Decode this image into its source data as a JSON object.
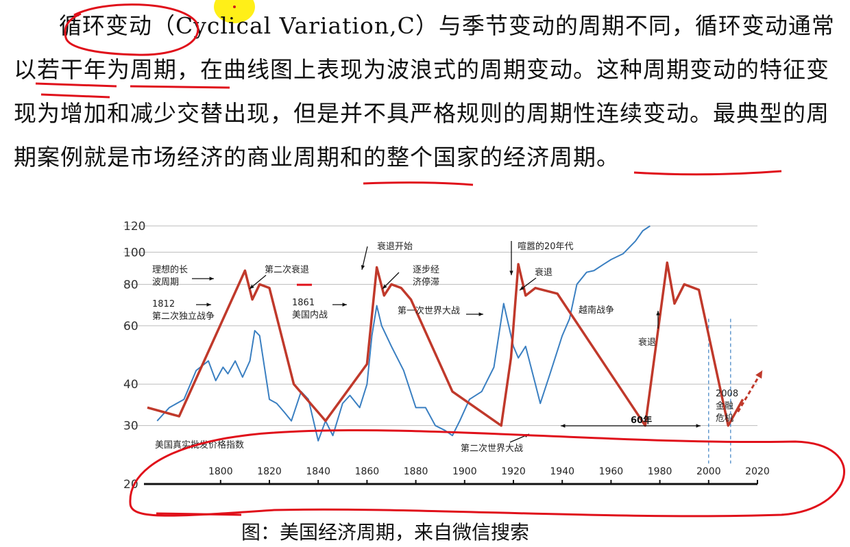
{
  "paragraph": {
    "text": "循环变动（Cyclical Variation,C）与季节变动的周期不同，循环变动通常以若干年为周期，在曲线图上表现为波浪式的周期变动。这种周期变动的特征变现为增加和减少交替出现，但是并不具严格规则的周期性连续变动。最典型的周期案例就是市场经济的商业周期和的整个国家的经济周期。"
  },
  "caption": "图：美国经济周期，来自微信搜索",
  "colors": {
    "wave": "#c0392b",
    "index": "#3a7fc1",
    "ink": "#e0101a",
    "grid": "#bbbbbb",
    "highlight": "#ffee00"
  },
  "chart_data": {
    "type": "line",
    "y_scale": "log",
    "ylim": [
      20,
      120
    ],
    "xlim": [
      1770,
      2020
    ],
    "y_ticks": [
      "20",
      "30",
      "40",
      "60",
      "80",
      "100",
      "120"
    ],
    "x_ticks": [
      "1800",
      "1820",
      "1840",
      "1860",
      "1880",
      "1900",
      "1920",
      "1940",
      "1960",
      "1980",
      "2000",
      "2020"
    ],
    "grid": true,
    "series": [
      {
        "name": "理想的长波周期",
        "color": "#c0392b",
        "x": [
          1770,
          1783,
          1810,
          1813,
          1816,
          1820,
          1830,
          1843,
          1860,
          1864,
          1867,
          1870,
          1874,
          1878,
          1895,
          1915,
          1919,
          1922,
          1925,
          1929,
          1938,
          1974,
          1983,
          1986,
          1990,
          1996,
          2008,
          2014
        ],
        "y": [
          34,
          32,
          88,
          72,
          80,
          78,
          40,
          31,
          46,
          90,
          74,
          80,
          78,
          72,
          38,
          30,
          48,
          92,
          74,
          78,
          75,
          30,
          93,
          70,
          80,
          77,
          30,
          36
        ]
      },
      {
        "name": "美国真实批发价格指数",
        "color": "#3a7fc1",
        "x": [
          1774,
          1779,
          1785,
          1790,
          1795,
          1798,
          1801,
          1803,
          1806,
          1809,
          1812,
          1814,
          1816,
          1820,
          1823,
          1826,
          1829,
          1833,
          1836,
          1840,
          1843,
          1846,
          1850,
          1853,
          1857,
          1860,
          1862,
          1864,
          1866,
          1870,
          1875,
          1880,
          1884,
          1888,
          1892,
          1895,
          1898,
          1902,
          1907,
          1912,
          1916,
          1920,
          1922,
          1925,
          1929,
          1931,
          1935,
          1940,
          1943,
          1946,
          1950,
          1953,
          1957,
          1960,
          1965,
          1970,
          1973,
          1976
        ],
        "y": [
          31,
          34,
          36,
          44,
          47,
          41,
          45,
          43,
          47,
          42,
          47,
          58,
          56,
          36,
          35,
          33,
          31,
          38,
          36,
          27,
          31,
          28,
          35,
          37,
          34,
          40,
          56,
          69,
          60,
          52,
          44,
          34,
          34,
          30,
          29,
          28,
          31,
          36,
          38,
          45,
          70,
          52,
          48,
          52,
          40,
          35,
          43,
          56,
          63,
          80,
          87,
          88,
          92,
          95,
          99,
          108,
          116,
          120
        ]
      }
    ],
    "annotations": [
      "理想的长 波周期",
      "1812 第二次独立战争",
      "第二次衰退",
      "衰退开始",
      "逐步经 济停滞",
      "1861 美国内战",
      "喧嚣的20年代",
      "衰退",
      "第一次世界大战",
      "越南战争",
      "衰退",
      "2008 金融 危机",
      "60年",
      "第二次世界大战",
      "美国真实批发价格指数"
    ]
  }
}
